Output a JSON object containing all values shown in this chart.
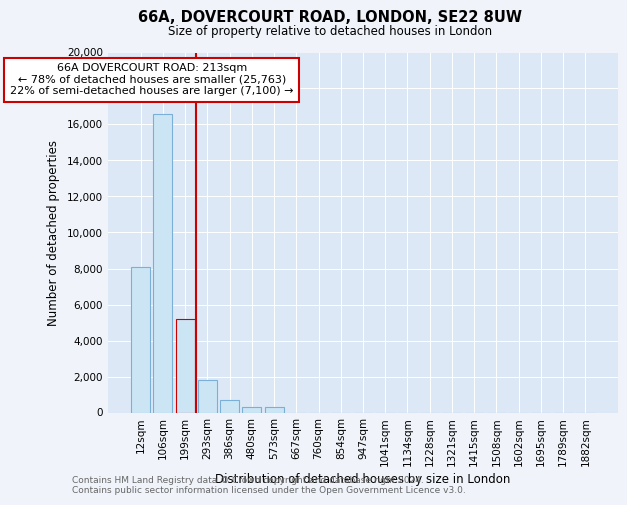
{
  "title": "66A, DOVERCOURT ROAD, LONDON, SE22 8UW",
  "subtitle": "Size of property relative to detached houses in London",
  "xlabel": "Distribution of detached houses by size in London",
  "ylabel": "Number of detached properties",
  "categories": [
    "12sqm",
    "106sqm",
    "199sqm",
    "293sqm",
    "386sqm",
    "480sqm",
    "573sqm",
    "667sqm",
    "760sqm",
    "854sqm",
    "947sqm",
    "1041sqm",
    "1134sqm",
    "1228sqm",
    "1321sqm",
    "1415sqm",
    "1508sqm",
    "1602sqm",
    "1695sqm",
    "1789sqm",
    "1882sqm"
  ],
  "values": [
    8100,
    16600,
    5200,
    1800,
    700,
    300,
    300,
    0,
    0,
    0,
    0,
    0,
    0,
    0,
    0,
    0,
    0,
    0,
    0,
    0,
    0
  ],
  "bar_color": "#cce5f5",
  "bar_edge_color": "#7ab0d8",
  "highlight_bar_index": 2,
  "highlight_bar_color": "#cce5f5",
  "highlight_bar_edge_color": "#cc0000",
  "vline_x": 2,
  "vline_color": "#cc0000",
  "annotation_title": "66A DOVERCOURT ROAD: 213sqm",
  "annotation_line1": "← 78% of detached houses are smaller (25,763)",
  "annotation_line2": "22% of semi-detached houses are larger (7,100) →",
  "annotation_box_color": "#cc0000",
  "ylim": [
    0,
    20000
  ],
  "yticks": [
    0,
    2000,
    4000,
    6000,
    8000,
    10000,
    12000,
    14000,
    16000,
    18000,
    20000
  ],
  "footnote1": "Contains HM Land Registry data © Crown copyright and database right 2024.",
  "footnote2": "Contains public sector information licensed under the Open Government Licence v3.0.",
  "bg_color": "#f0f4fa",
  "plot_bg_color": "#dce8f5"
}
